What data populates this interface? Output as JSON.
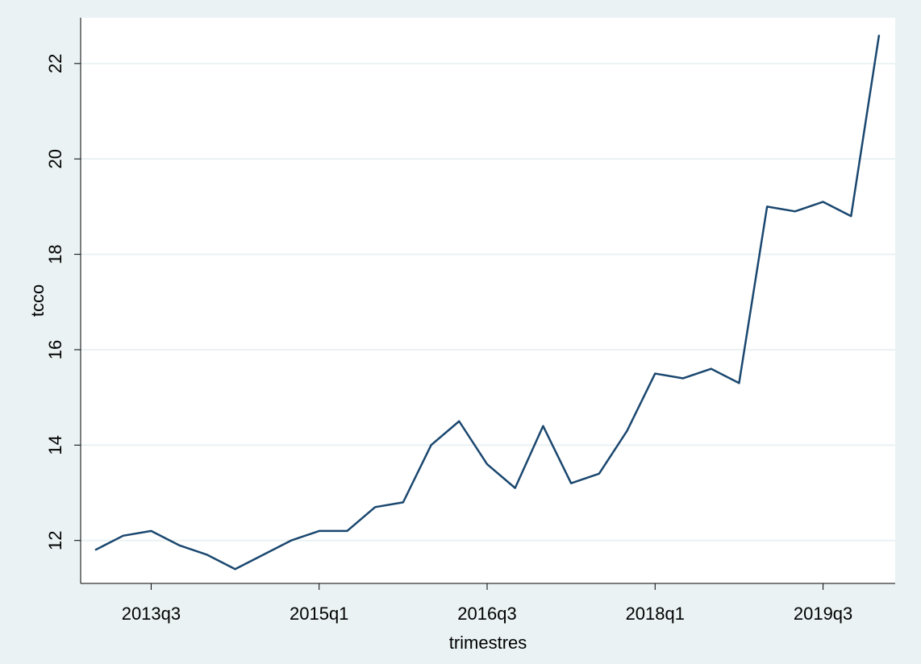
{
  "chart_data": {
    "type": "line",
    "x_label": "trimestres",
    "y_label": "tcco",
    "x": [
      "2013q1",
      "2013q2",
      "2013q3",
      "2013q4",
      "2014q1",
      "2014q2",
      "2014q3",
      "2014q4",
      "2015q1",
      "2015q2",
      "2015q3",
      "2015q4",
      "2016q1",
      "2016q2",
      "2016q3",
      "2016q4",
      "2017q1",
      "2017q2",
      "2017q3",
      "2017q4",
      "2018q1",
      "2018q2",
      "2018q3",
      "2018q4",
      "2019q1",
      "2019q2",
      "2019q3",
      "2019q4",
      "2020q1"
    ],
    "series": [
      {
        "name": "tcco",
        "color": "#1a476f",
        "values": [
          11.8,
          12.1,
          12.2,
          11.9,
          11.7,
          11.4,
          11.7,
          12.0,
          12.2,
          12.2,
          12.7,
          12.8,
          14.0,
          14.5,
          13.6,
          13.1,
          14.4,
          13.2,
          13.4,
          14.3,
          15.5,
          15.4,
          15.6,
          15.3,
          19.0,
          18.9,
          19.1,
          18.8,
          22.6
        ]
      }
    ],
    "xticks": [
      "2013q3",
      "2015q1",
      "2016q3",
      "2018q1",
      "2019q3"
    ],
    "ylim": [
      11.1,
      22.96
    ],
    "yticks": [
      12,
      14,
      16,
      18,
      20,
      22
    ],
    "grid": true
  }
}
